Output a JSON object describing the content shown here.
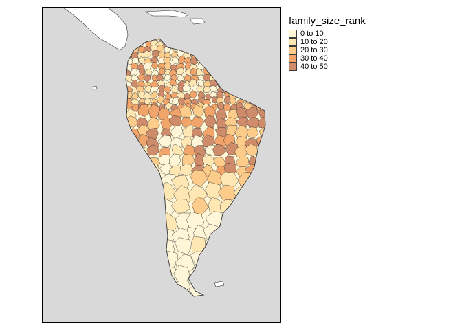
{
  "legend": {
    "title": "family_size_rank",
    "items": [
      {
        "label": "0 to 10",
        "color": "#fef6d6"
      },
      {
        "label": "10 to 20",
        "color": "#fee7b3"
      },
      {
        "label": "20 to 30",
        "color": "#fdcc8a"
      },
      {
        "label": "30 to 40",
        "color": "#f1a56b"
      },
      {
        "label": "40 to 50",
        "color": "#cf8c6b"
      }
    ]
  },
  "map": {
    "background": "#d9d9d9",
    "land_outside": "#ffffff",
    "border_color": "#333333",
    "region": "South America"
  }
}
